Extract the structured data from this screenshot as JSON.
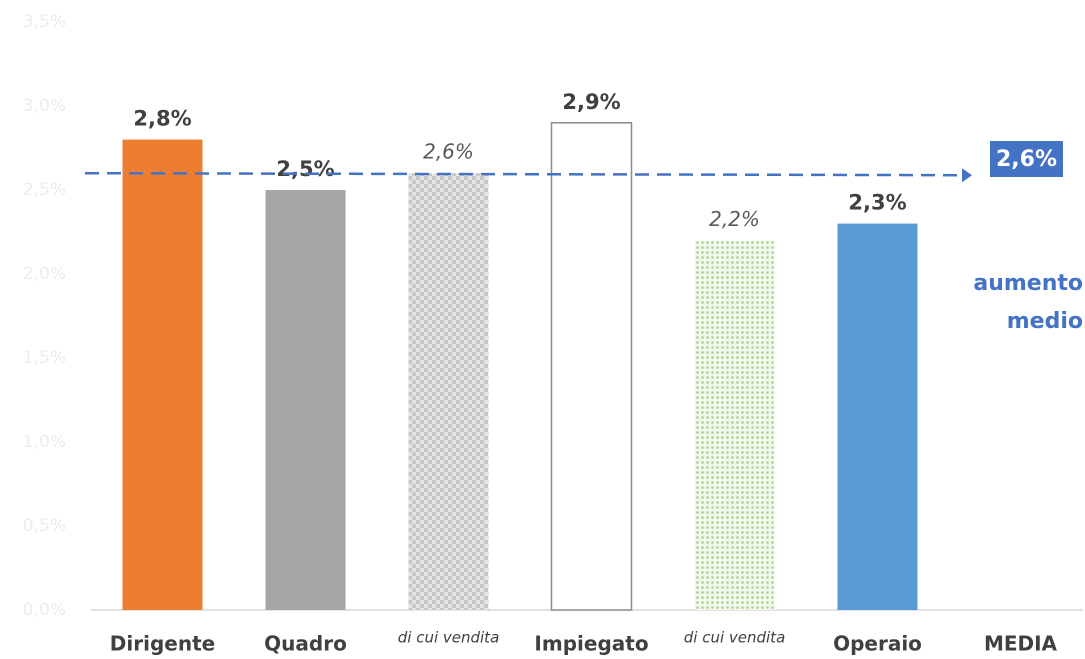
{
  "chart_data": {
    "type": "bar",
    "categories": [
      "Dirigente",
      "Quadro",
      "di cui vendita",
      "Impiegato",
      "di cui vendita",
      "Operaio",
      "MEDIA"
    ],
    "values": [
      2.8,
      2.5,
      2.6,
      2.9,
      2.2,
      2.3,
      null
    ],
    "value_labels": [
      "2,8%",
      "2,5%",
      "2,6%",
      "2,9%",
      "2,2%",
      "2,3%",
      null
    ],
    "colors": [
      "#ED7D31",
      "#A5A5A5",
      "#BFBFBF",
      "#FFFFFF",
      "#A9D18E",
      "#5B9BD5",
      null
    ],
    "styles": [
      "solid",
      "solid",
      "checker",
      "outline",
      "dots",
      "solid",
      null
    ],
    "ylim": [
      0,
      3.5
    ],
    "yticks": [
      {
        "value": 0,
        "label": "0,0%"
      },
      {
        "value": 0.5,
        "label": "0,5%"
      },
      {
        "value": 1,
        "label": "1,0%"
      },
      {
        "value": 1.5,
        "label": "1,5%"
      },
      {
        "value": 2,
        "label": "2,0%"
      },
      {
        "value": 2.5,
        "label": "2,5%"
      },
      {
        "value": 3,
        "label": "3,0%"
      },
      {
        "value": 3.5,
        "label": "3,5%"
      }
    ],
    "grid": false,
    "average": {
      "value": 2.6,
      "label": "2,6%",
      "color": "#4472C4"
    },
    "annotation": [
      "aumento",
      "medio"
    ]
  }
}
